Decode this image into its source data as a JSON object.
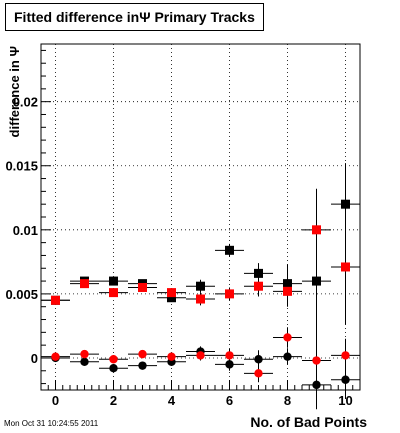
{
  "title": "Fitted difference inΨ  Primary Tracks",
  "timestamp": "Mon Oct 31 10:24:55 2011",
  "chart_data": {
    "type": "scatter",
    "title": "Fitted difference inΨ  Primary Tracks",
    "xlabel": "No. of Bad Points",
    "ylabel": "difference in Ψ",
    "xlim": [
      -0.5,
      10.5
    ],
    "ylim": [
      -0.0025,
      0.0245
    ],
    "x_ticks": [
      0,
      2,
      4,
      6,
      8,
      10
    ],
    "y_ticks": [
      0,
      0.005,
      0.01,
      0.015,
      0.02
    ],
    "y_tick_labels": [
      "0",
      "0.005",
      "0.01",
      "0.015",
      "0.02"
    ],
    "grid": true,
    "series": [
      {
        "marker": "square",
        "color": "#000000",
        "x": [
          0,
          1,
          2,
          3,
          4,
          5,
          6,
          7,
          8,
          9,
          10
        ],
        "y": [
          0.0045,
          0.006,
          0.006,
          0.0058,
          0.0047,
          0.0056,
          0.0084,
          0.0066,
          0.0058,
          0.006,
          0.012
        ],
        "yerr": [
          0.0002,
          0.0002,
          0.0003,
          0.0003,
          0.0003,
          0.0005,
          0.0005,
          0.0008,
          0.0015,
          0.0072,
          0.0032
        ]
      },
      {
        "marker": "square",
        "color": "#ff0000",
        "x": [
          0,
          1,
          2,
          3,
          4,
          5,
          6,
          7,
          8,
          9,
          10
        ],
        "y": [
          0.0045,
          0.0058,
          0.0051,
          0.0055,
          0.0051,
          0.0046,
          0.005,
          0.0056,
          0.0052,
          0.01,
          0.0071
        ],
        "yerr": [
          0.0002,
          0.0002,
          0.0003,
          0.0003,
          0.0003,
          0.0005,
          0.0005,
          0.0008,
          0.0012,
          0.0018,
          0.0045
        ]
      },
      {
        "marker": "circle",
        "color": "#000000",
        "x": [
          0,
          1,
          2,
          3,
          4,
          5,
          6,
          7,
          8,
          9,
          10
        ],
        "y": [
          0.0,
          -0.0003,
          -0.0008,
          -0.0006,
          -0.0003,
          0.0005,
          -0.0005,
          -0.0001,
          0.0001,
          -0.0021,
          -0.0017
        ],
        "yerr": [
          0.0002,
          0.0002,
          0.0003,
          0.0003,
          0.0003,
          0.0004,
          0.0005,
          0.0007,
          0.0006,
          0.0019,
          0.0015
        ]
      },
      {
        "marker": "circle",
        "color": "#ff0000",
        "x": [
          0,
          1,
          2,
          3,
          4,
          5,
          6,
          7,
          8,
          9,
          10
        ],
        "y": [
          0.0001,
          0.0003,
          -0.0001,
          0.0003,
          0.0001,
          0.0002,
          0.0002,
          -0.0012,
          0.0016,
          -0.0002,
          0.0002
        ],
        "yerr": [
          0.0002,
          0.0002,
          0.0003,
          0.0003,
          0.0003,
          0.0004,
          0.0005,
          0.0007,
          0.0008,
          0.0017,
          0.0013
        ]
      }
    ]
  }
}
